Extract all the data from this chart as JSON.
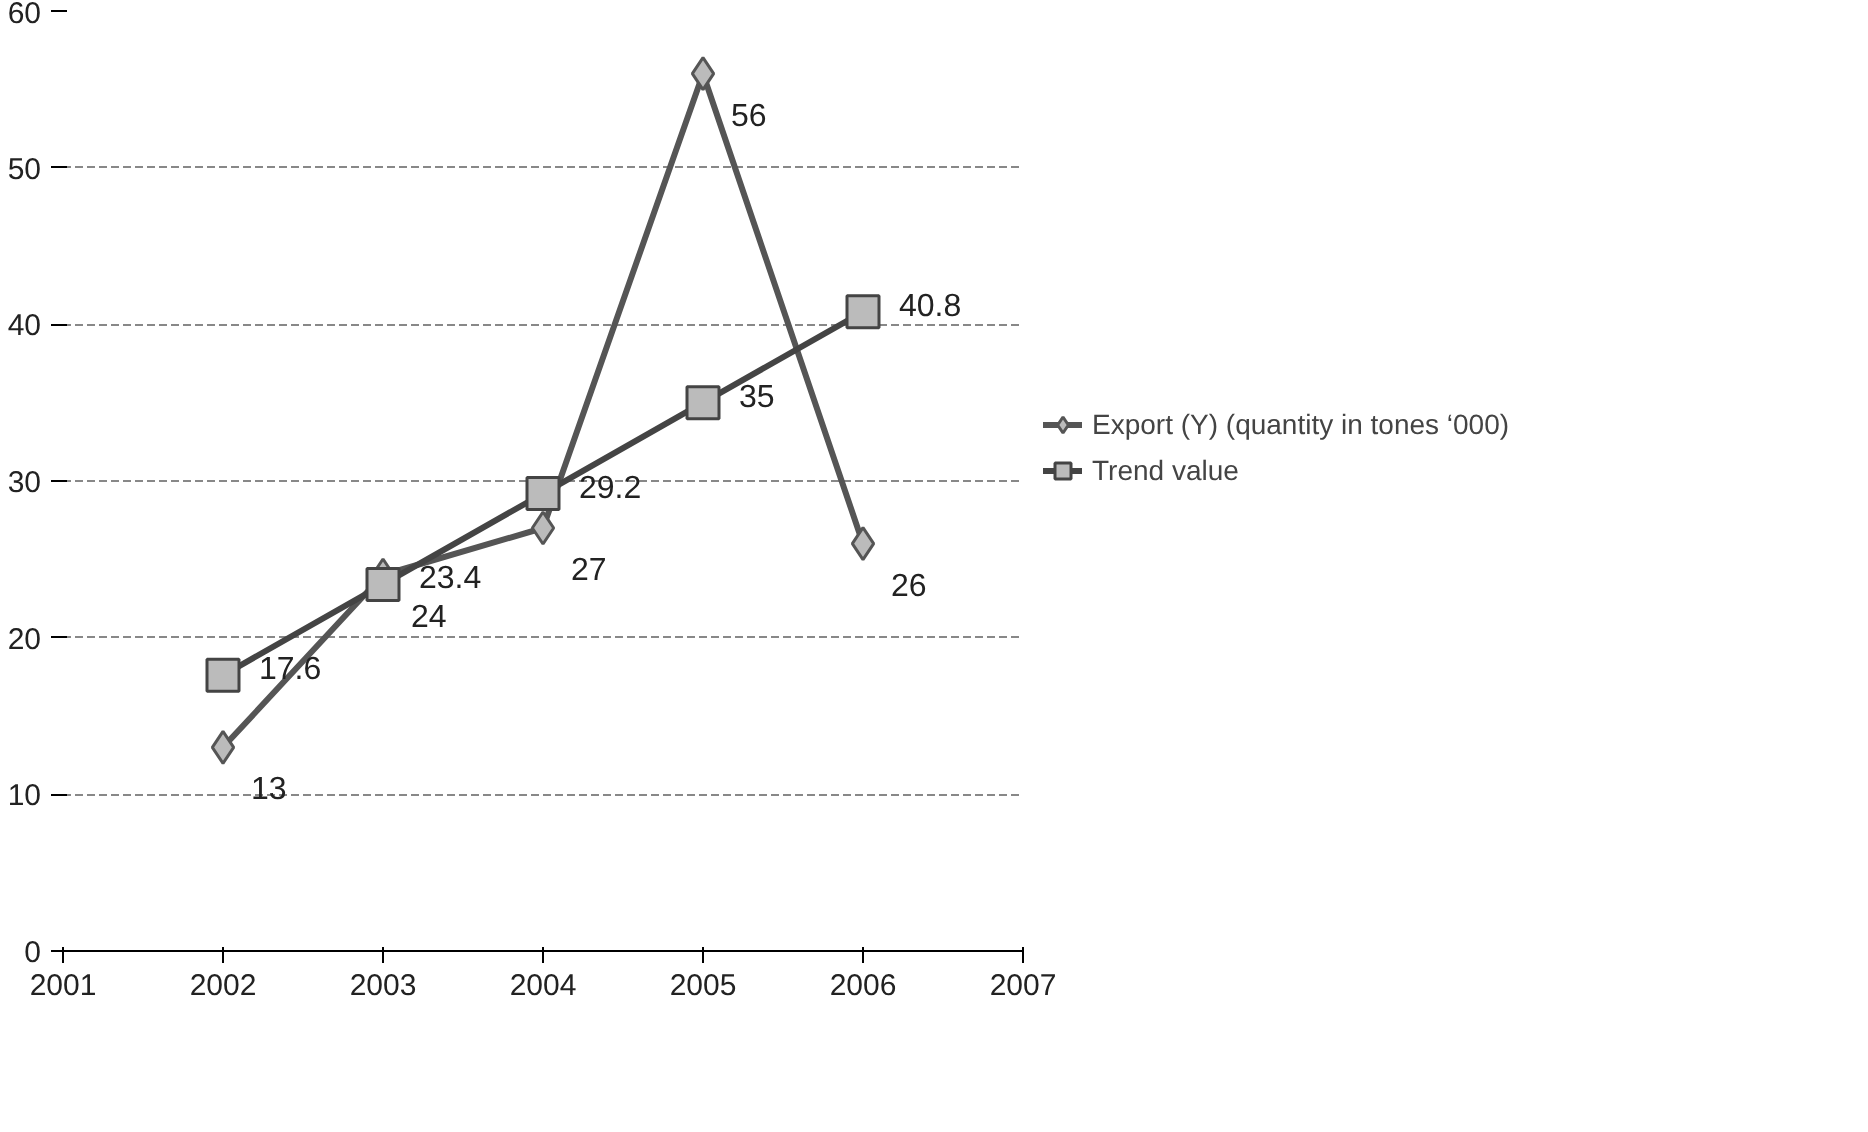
{
  "chart_data": {
    "type": "line",
    "x": [
      2002,
      2003,
      2004,
      2005,
      2006
    ],
    "series": [
      {
        "name": "Export (Y) (quantity in tones ‘000)",
        "color": "#555555",
        "values": [
          13,
          24,
          27,
          56,
          26
        ],
        "marker": "diamond"
      },
      {
        "name": "Trend value",
        "color": "#444444",
        "values": [
          17.6,
          23.4,
          29.2,
          35,
          40.8
        ],
        "marker": "square"
      }
    ],
    "xlim": [
      2001,
      2007
    ],
    "xticks": [
      2001,
      2002,
      2003,
      2004,
      2005,
      2006,
      2007
    ],
    "ylim": [
      0,
      60
    ],
    "yticks": [
      0,
      10,
      20,
      30,
      40,
      50,
      60
    ],
    "grid": "y",
    "legend": "right",
    "data_labels": true,
    "line_style": "solid"
  }
}
